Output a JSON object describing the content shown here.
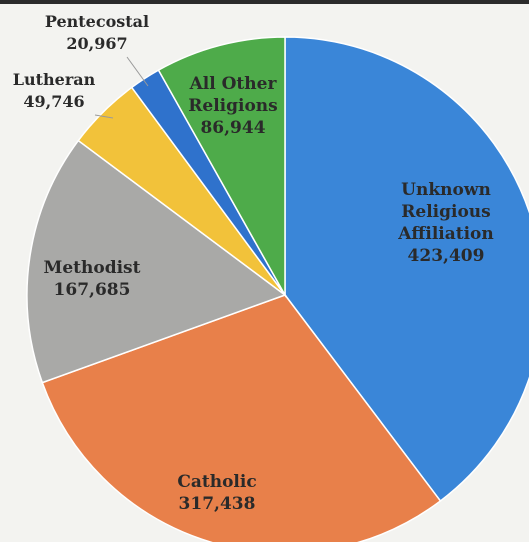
{
  "chart_data": {
    "type": "pie",
    "title": "",
    "slices": [
      {
        "label": "Unknown Religious Affiliation",
        "value": 423409,
        "value_text": "423,409",
        "color": "#3a86d8"
      },
      {
        "label": "Catholic",
        "value": 317438,
        "value_text": "317,438",
        "color": "#e8804a"
      },
      {
        "label": "Methodist",
        "value": 167685,
        "value_text": "167,685",
        "color": "#a9a9a7"
      },
      {
        "label": "Lutheran",
        "value": 49746,
        "value_text": "49,746",
        "color": "#f2c23a"
      },
      {
        "label": "Pentecostal",
        "value": 20967,
        "value_text": "20,967",
        "color": "#2f72cc"
      },
      {
        "label": "All Other Religions",
        "value": 86944,
        "value_text": "86,944",
        "color": "#4eab4a"
      }
    ]
  }
}
